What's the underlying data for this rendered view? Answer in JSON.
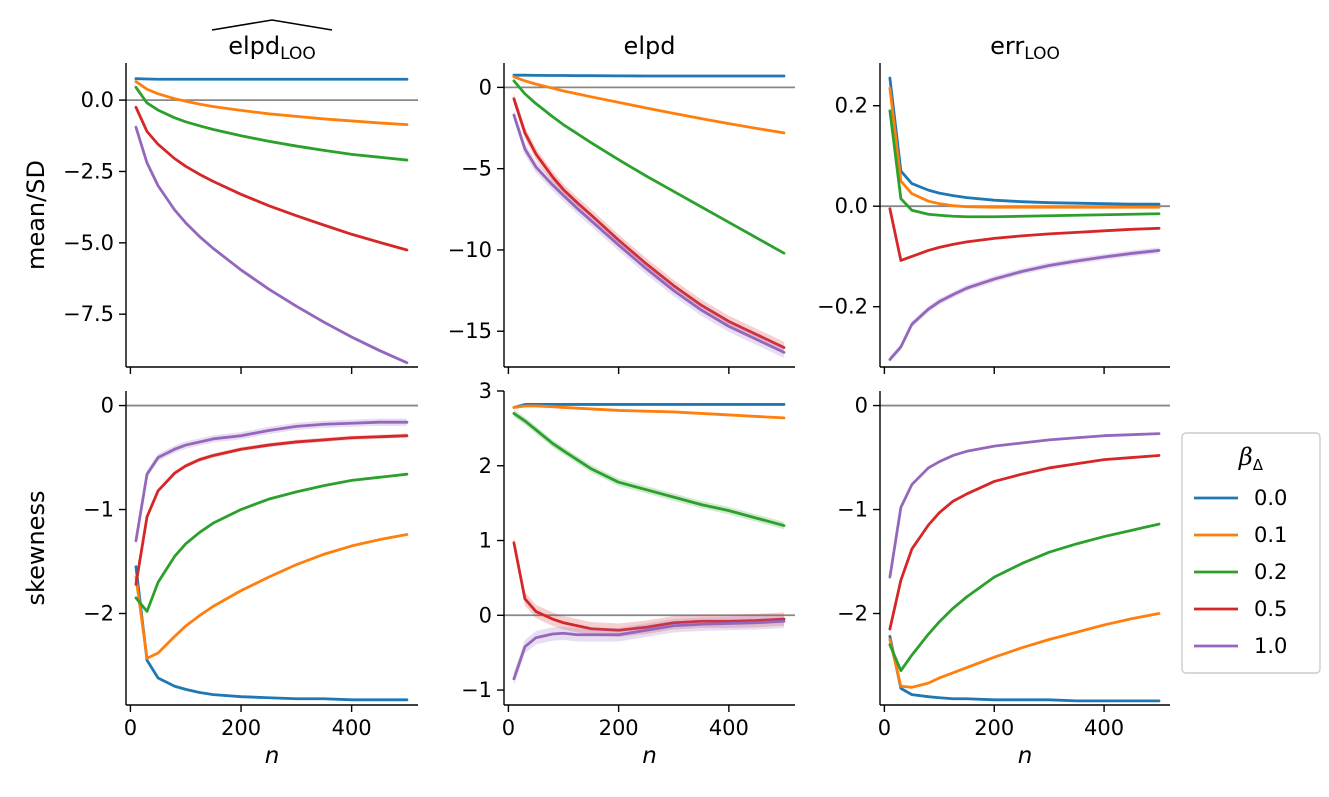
{
  "chart_data": {
    "type": "line",
    "x": [
      10,
      30,
      50,
      80,
      100,
      125,
      150,
      200,
      250,
      300,
      350,
      400,
      450,
      500
    ],
    "legend": {
      "title_main": "β",
      "title_sub": "Δ",
      "placement": "center-right",
      "entries": [
        "0.0",
        "0.1",
        "0.2",
        "0.5",
        "1.0"
      ]
    },
    "row_labels": [
      "mean/SD",
      "skewness"
    ],
    "xlabel": "n",
    "xticks": [
      "0",
      "200",
      "400"
    ],
    "xlim": [
      -8,
      520
    ],
    "colors": [
      "#1f77b4",
      "#ff7f0e",
      "#2ca02c",
      "#d62728",
      "#9467bd"
    ],
    "panels": [
      {
        "column_title": "elpd",
        "column_title_sub": "LOO",
        "title_hat": true,
        "ylim": [
          -9.35,
          1.3
        ],
        "yticks": [
          0.0,
          -2.5,
          -5.0,
          -7.5
        ],
        "ytick_labels": [
          "0.0",
          "−2.5",
          "−5.0",
          "−7.5"
        ],
        "zero_line": 0,
        "series": [
          {
            "values": [
              0.75,
              0.74,
              0.73,
              0.73,
              0.73,
              0.73,
              0.73,
              0.73,
              0.73,
              0.73,
              0.73,
              0.73,
              0.73,
              0.73
            ],
            "band": 0
          },
          {
            "values": [
              0.65,
              0.38,
              0.22,
              0.05,
              -0.04,
              -0.14,
              -0.23,
              -0.36,
              -0.48,
              -0.57,
              -0.66,
              -0.73,
              -0.8,
              -0.86
            ],
            "band": 0
          },
          {
            "values": [
              0.45,
              -0.1,
              -0.35,
              -0.62,
              -0.76,
              -0.9,
              -1.03,
              -1.25,
              -1.44,
              -1.61,
              -1.76,
              -1.9,
              -2.0,
              -2.1
            ],
            "band": 0
          },
          {
            "values": [
              -0.25,
              -1.1,
              -1.55,
              -2.05,
              -2.32,
              -2.6,
              -2.85,
              -3.3,
              -3.7,
              -4.05,
              -4.38,
              -4.7,
              -4.98,
              -5.25
            ],
            "band": 0.03
          },
          {
            "values": [
              -0.95,
              -2.2,
              -3.0,
              -3.85,
              -4.3,
              -4.78,
              -5.2,
              -5.95,
              -6.62,
              -7.22,
              -7.78,
              -8.3,
              -8.77,
              -9.2
            ],
            "band": 0.06
          }
        ]
      },
      {
        "column_title": "elpd",
        "column_title_sub": "",
        "title_hat": false,
        "ylim": [
          -17.2,
          1.5
        ],
        "yticks": [
          0,
          -5,
          -10,
          -15
        ],
        "ytick_labels": [
          "0",
          "−5",
          "−10",
          "−15"
        ],
        "zero_line": 0,
        "series": [
          {
            "values": [
              0.75,
              0.75,
              0.74,
              0.73,
              0.73,
              0.72,
              0.72,
              0.71,
              0.7,
              0.7,
              0.7,
              0.7,
              0.7,
              0.7
            ],
            "band": 0
          },
          {
            "values": [
              0.65,
              0.4,
              0.2,
              -0.05,
              -0.22,
              -0.4,
              -0.58,
              -0.92,
              -1.27,
              -1.6,
              -1.92,
              -2.23,
              -2.52,
              -2.8
            ],
            "band": 0
          },
          {
            "values": [
              0.4,
              -0.4,
              -1.0,
              -1.8,
              -2.3,
              -2.85,
              -3.4,
              -4.45,
              -5.45,
              -6.4,
              -7.35,
              -8.3,
              -9.25,
              -10.2
            ],
            "band": 0
          },
          {
            "values": [
              -0.7,
              -2.8,
              -4.1,
              -5.5,
              -6.3,
              -7.1,
              -7.85,
              -9.4,
              -10.85,
              -12.2,
              -13.4,
              -14.4,
              -15.2,
              -16.0
            ],
            "band": 0.35
          },
          {
            "values": [
              -1.7,
              -3.8,
              -4.9,
              -6.0,
              -6.65,
              -7.45,
              -8.2,
              -9.7,
              -11.15,
              -12.5,
              -13.7,
              -14.7,
              -15.5,
              -16.3
            ],
            "band": 0.35
          }
        ]
      },
      {
        "column_title": "err",
        "column_title_sub": "LOO",
        "title_hat": false,
        "ylim": [
          -0.32,
          0.285
        ],
        "yticks": [
          0.2,
          0.0,
          -0.2
        ],
        "ytick_labels": [
          "0.2",
          "0.0",
          "−0.2"
        ],
        "zero_line": 0,
        "series": [
          {
            "values": [
              0.255,
              0.07,
              0.045,
              0.032,
              0.026,
              0.021,
              0.017,
              0.012,
              0.009,
              0.007,
              0.006,
              0.005,
              0.004,
              0.004
            ],
            "band": 0
          },
          {
            "values": [
              0.235,
              0.05,
              0.025,
              0.01,
              0.005,
              0.001,
              -0.001,
              -0.002,
              -0.002,
              -0.002,
              -0.002,
              -0.002,
              -0.002,
              -0.002
            ],
            "band": 0
          },
          {
            "values": [
              0.19,
              0.015,
              -0.008,
              -0.016,
              -0.018,
              -0.02,
              -0.021,
              -0.021,
              -0.02,
              -0.019,
              -0.018,
              -0.017,
              -0.016,
              -0.015
            ],
            "band": 0
          },
          {
            "values": [
              -0.005,
              -0.108,
              -0.1,
              -0.088,
              -0.082,
              -0.076,
              -0.071,
              -0.064,
              -0.059,
              -0.055,
              -0.052,
              -0.049,
              -0.046,
              -0.044
            ],
            "band": 0
          },
          {
            "values": [
              -0.305,
              -0.28,
              -0.235,
              -0.205,
              -0.19,
              -0.176,
              -0.163,
              -0.145,
              -0.13,
              -0.118,
              -0.109,
              -0.101,
              -0.094,
              -0.088
            ],
            "band": 0.006
          }
        ]
      },
      {
        "column_title": "",
        "column_title_sub": "",
        "title_hat": false,
        "ylim": [
          -2.88,
          0.14
        ],
        "yticks": [
          0,
          -1,
          -2
        ],
        "ytick_labels": [
          "0",
          "−1",
          "−2"
        ],
        "zero_line": 0,
        "series": [
          {
            "values": [
              -1.55,
              -2.45,
              -2.62,
              -2.7,
              -2.73,
              -2.76,
              -2.78,
              -2.8,
              -2.81,
              -2.82,
              -2.82,
              -2.83,
              -2.83,
              -2.83
            ],
            "band": 0
          },
          {
            "values": [
              -1.65,
              -2.43,
              -2.38,
              -2.22,
              -2.12,
              -2.02,
              -1.93,
              -1.78,
              -1.65,
              -1.53,
              -1.43,
              -1.35,
              -1.29,
              -1.24
            ],
            "band": 0
          },
          {
            "values": [
              -1.85,
              -1.98,
              -1.7,
              -1.45,
              -1.33,
              -1.22,
              -1.13,
              -1.0,
              -0.9,
              -0.83,
              -0.77,
              -0.72,
              -0.69,
              -0.66
            ],
            "band": 0
          },
          {
            "values": [
              -1.72,
              -1.07,
              -0.82,
              -0.65,
              -0.58,
              -0.52,
              -0.48,
              -0.42,
              -0.38,
              -0.35,
              -0.33,
              -0.31,
              -0.3,
              -0.29
            ],
            "band": 0.02
          },
          {
            "values": [
              -1.3,
              -0.66,
              -0.5,
              -0.42,
              -0.38,
              -0.35,
              -0.32,
              -0.29,
              -0.24,
              -0.2,
              -0.18,
              -0.17,
              -0.16,
              -0.16
            ],
            "band": 0.035
          }
        ]
      },
      {
        "column_title": "",
        "column_title_sub": "",
        "title_hat": false,
        "ylim": [
          -1.2,
          3.0
        ],
        "yticks": [
          3,
          2,
          1,
          0,
          -1
        ],
        "ytick_labels": [
          "3",
          "2",
          "1",
          "0",
          "−1"
        ],
        "zero_line": 0,
        "series": [
          {
            "values": [
              2.78,
              2.82,
              2.82,
              2.82,
              2.82,
              2.82,
              2.82,
              2.82,
              2.82,
              2.82,
              2.82,
              2.82,
              2.82,
              2.82
            ],
            "band": 0
          },
          {
            "values": [
              2.78,
              2.8,
              2.8,
              2.79,
              2.78,
              2.77,
              2.76,
              2.74,
              2.73,
              2.72,
              2.7,
              2.68,
              2.66,
              2.64
            ],
            "band": 0
          },
          {
            "values": [
              2.7,
              2.6,
              2.48,
              2.3,
              2.2,
              2.08,
              1.96,
              1.78,
              1.68,
              1.58,
              1.48,
              1.4,
              1.3,
              1.2
            ],
            "band": 0.05
          },
          {
            "values": [
              0.97,
              0.22,
              0.05,
              -0.05,
              -0.1,
              -0.14,
              -0.18,
              -0.2,
              -0.16,
              -0.1,
              -0.08,
              -0.08,
              -0.07,
              -0.05
            ],
            "band": 0.09
          },
          {
            "values": [
              -0.85,
              -0.42,
              -0.3,
              -0.25,
              -0.24,
              -0.26,
              -0.26,
              -0.26,
              -0.2,
              -0.14,
              -0.12,
              -0.11,
              -0.1,
              -0.08
            ],
            "band": 0.09
          }
        ]
      },
      {
        "column_title": "",
        "column_title_sub": "",
        "title_hat": false,
        "ylim": [
          -2.88,
          0.14
        ],
        "yticks": [
          0,
          -1,
          -2
        ],
        "ytick_labels": [
          "0",
          "−1",
          "−2"
        ],
        "zero_line": 0,
        "series": [
          {
            "values": [
              -2.22,
              -2.72,
              -2.78,
              -2.8,
              -2.81,
              -2.82,
              -2.82,
              -2.83,
              -2.83,
              -2.83,
              -2.84,
              -2.84,
              -2.84,
              -2.84
            ],
            "band": 0
          },
          {
            "values": [
              -2.25,
              -2.7,
              -2.71,
              -2.67,
              -2.62,
              -2.57,
              -2.52,
              -2.42,
              -2.33,
              -2.25,
              -2.18,
              -2.11,
              -2.05,
              -2.0
            ],
            "band": 0
          },
          {
            "values": [
              -2.3,
              -2.55,
              -2.4,
              -2.2,
              -2.08,
              -1.95,
              -1.84,
              -1.65,
              -1.52,
              -1.41,
              -1.33,
              -1.26,
              -1.2,
              -1.14
            ],
            "band": 0
          },
          {
            "values": [
              -2.15,
              -1.68,
              -1.38,
              -1.15,
              -1.03,
              -0.92,
              -0.85,
              -0.73,
              -0.66,
              -0.6,
              -0.56,
              -0.52,
              -0.5,
              -0.48
            ],
            "band": 0
          },
          {
            "values": [
              -1.65,
              -0.98,
              -0.76,
              -0.6,
              -0.54,
              -0.48,
              -0.44,
              -0.39,
              -0.36,
              -0.33,
              -0.31,
              -0.29,
              -0.28,
              -0.27
            ],
            "band": 0
          }
        ]
      }
    ]
  }
}
